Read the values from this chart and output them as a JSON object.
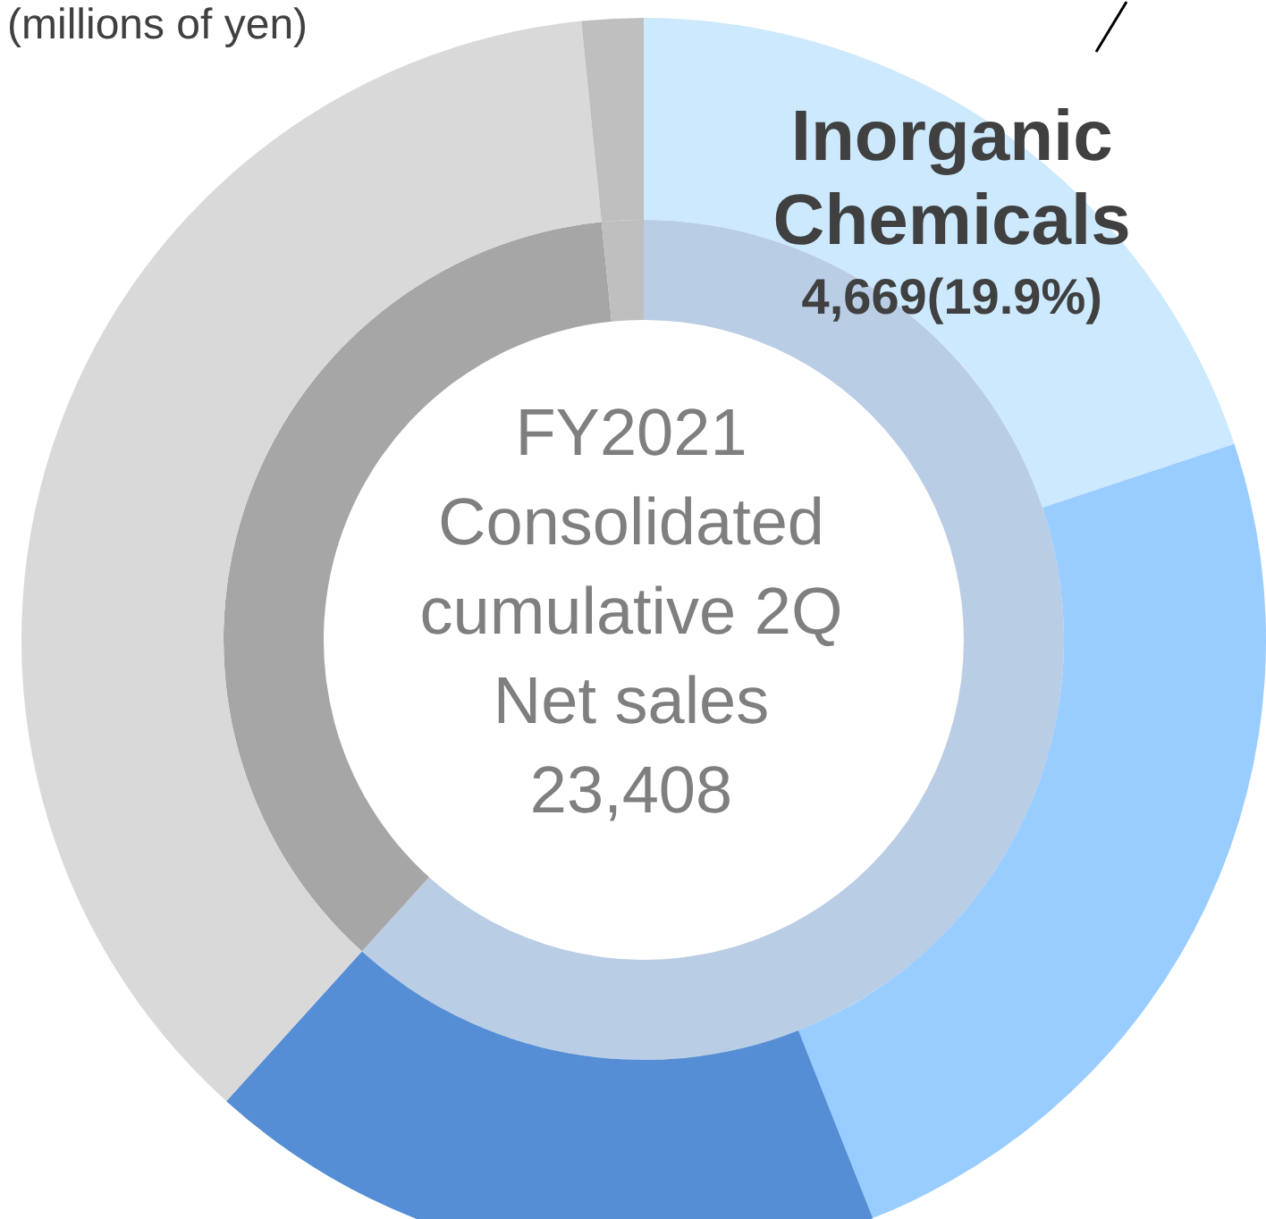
{
  "chart_data": [
    {
      "type": "donut",
      "title": "FY2021 Consolidated cumulative 2Q Net sales 23,408",
      "annotations": [
        "(millions of yen)"
      ],
      "categories": [
        "Inorganic Chemicals",
        null,
        null,
        null,
        null
      ],
      "values": [
        19.9,
        24.1,
        17.7,
        36.7,
        1.6
      ],
      "colors": [
        "#cce9fd",
        "#99ccff",
        "#558ed5",
        "#d9d9d9",
        "#bfbfbf"
      ],
      "value_labels": [
        "4,669(19.9%)",
        null,
        null,
        null,
        null
      ]
    },
    {
      "type": "donut",
      "categories": [
        null,
        null,
        null
      ],
      "values": [
        61.7,
        36.7,
        1.6
      ],
      "colors": [
        "#b9cde5",
        "#a6a6a6",
        "#bfbfbf"
      ]
    }
  ]
}
